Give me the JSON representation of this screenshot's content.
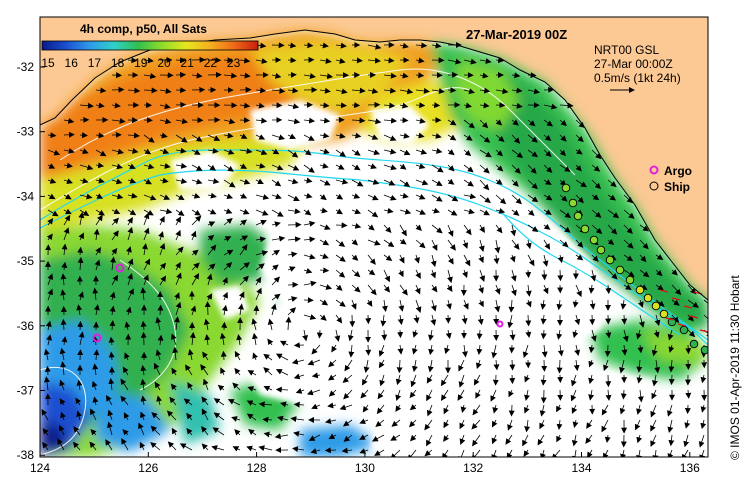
{
  "colorbar": {
    "title": "4h comp, p50, All Sats",
    "ticks": [
      "15",
      "16",
      "17",
      "18",
      "19",
      "20",
      "21",
      "22",
      "23"
    ],
    "colors": [
      "#0a1a8a",
      "#1a4fd0",
      "#2e9be8",
      "#2fd0c8",
      "#30c050",
      "#8fdc2a",
      "#e6e620",
      "#f5b020",
      "#ef6a18",
      "#c81e10"
    ]
  },
  "date_title": "27-Mar-2019 00Z",
  "info": {
    "line1": "NRT00 GSL",
    "line2": "27-Mar 00:00Z",
    "line3": "0.5m/s (1kt 24h)"
  },
  "legend": {
    "argo": "Argo",
    "ship": "Ship",
    "argo_color": "#e020e0",
    "ship_color": "#000000"
  },
  "axes": {
    "x_ticks": [
      "124",
      "126",
      "128",
      "130",
      "132",
      "134",
      "136"
    ],
    "y_ticks": [
      "-32",
      "-33",
      "-34",
      "-35",
      "-36",
      "-37",
      "-38"
    ]
  },
  "credit": "© IMOS 01-Apr-2019 11:30 Hobart",
  "colors": {
    "land": "#fcc994",
    "isobath": "#22d8f0",
    "contour": "#ffffff"
  }
}
